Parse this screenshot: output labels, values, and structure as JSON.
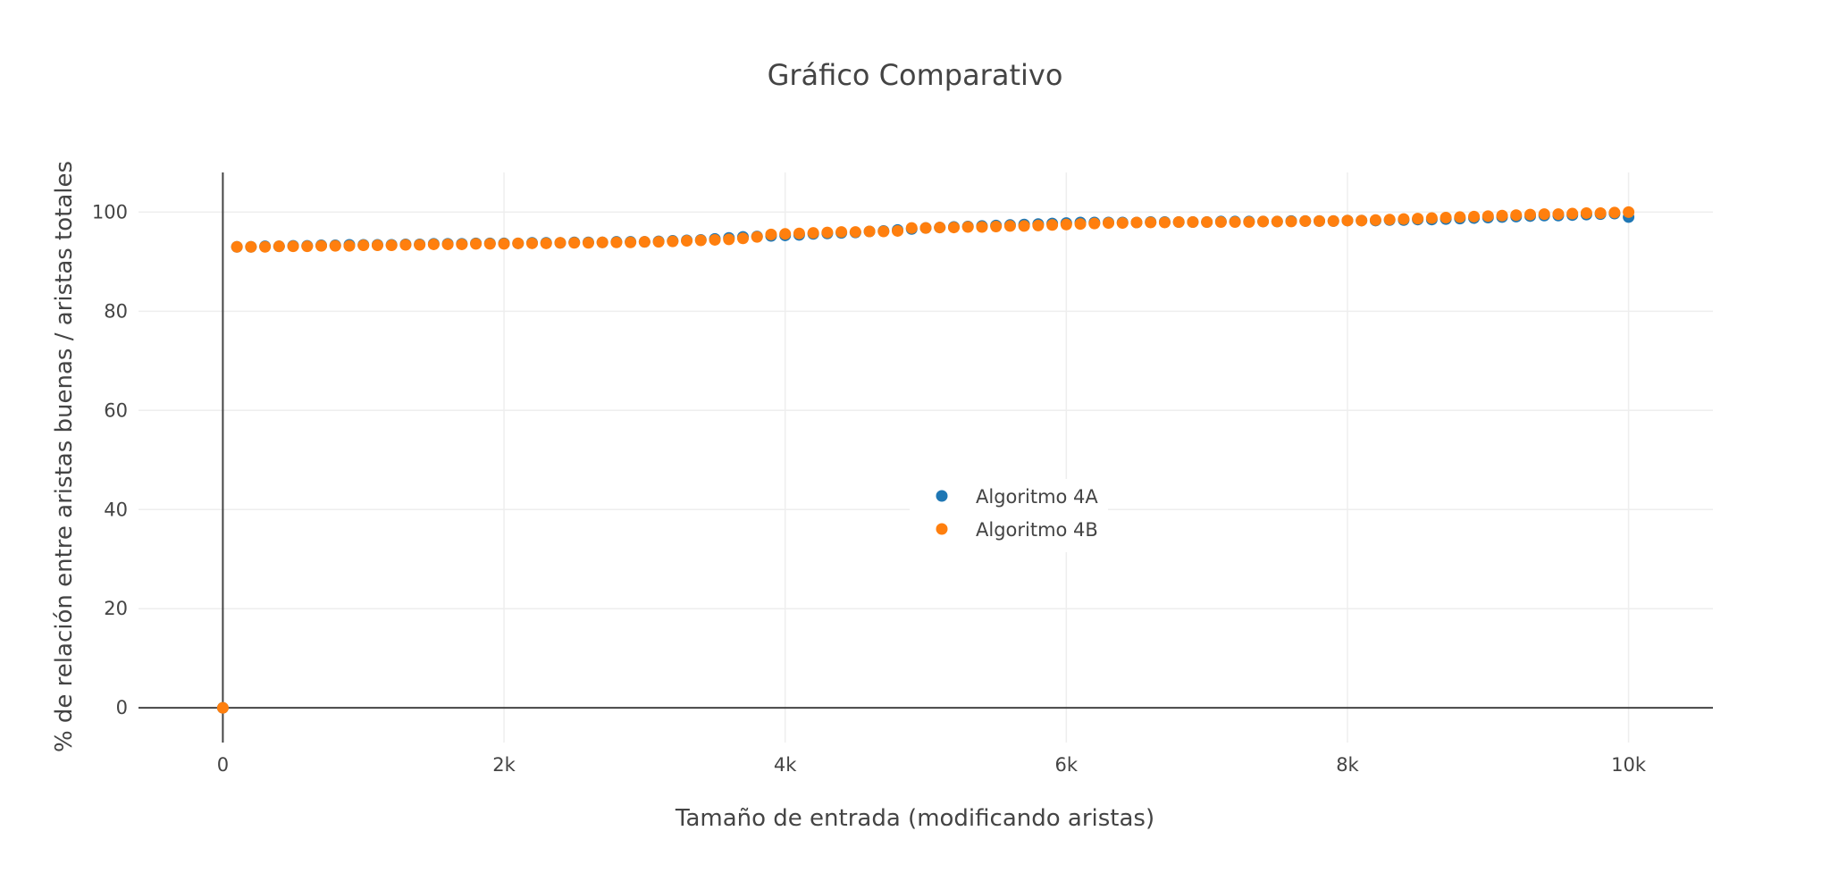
{
  "chart_data": {
    "type": "scatter",
    "title": "Gráfico Comparativo",
    "xlabel": "Tamaño de entrada (modificando aristas)",
    "ylabel": "% de relación entre aristas buenas / aristas totales",
    "xlim": [
      -600,
      10600
    ],
    "ylim": [
      -7,
      108
    ],
    "x_ticks": [
      {
        "value": 0,
        "label": "0"
      },
      {
        "value": 2000,
        "label": "2k"
      },
      {
        "value": 4000,
        "label": "4k"
      },
      {
        "value": 6000,
        "label": "6k"
      },
      {
        "value": 8000,
        "label": "8k"
      },
      {
        "value": 10000,
        "label": "10k"
      }
    ],
    "y_ticks": [
      {
        "value": 0,
        "label": "0"
      },
      {
        "value": 20,
        "label": "20"
      },
      {
        "value": 40,
        "label": "40"
      },
      {
        "value": 60,
        "label": "60"
      },
      {
        "value": 80,
        "label": "80"
      },
      {
        "value": 100,
        "label": "100"
      }
    ],
    "grid": true,
    "legend_position": "center",
    "series": [
      {
        "name": "Algoritmo 4A",
        "color": "#1f77b4",
        "x": [
          0,
          100,
          200,
          300,
          400,
          500,
          600,
          700,
          800,
          900,
          1000,
          1100,
          1200,
          1300,
          1400,
          1500,
          1600,
          1700,
          1800,
          1900,
          2000,
          2100,
          2200,
          2300,
          2400,
          2500,
          2600,
          2700,
          2800,
          2900,
          3000,
          3100,
          3200,
          3300,
          3400,
          3500,
          3600,
          3700,
          3800,
          3900,
          4000,
          4100,
          4200,
          4300,
          4400,
          4500,
          4600,
          4700,
          4800,
          4900,
          5000,
          5100,
          5200,
          5300,
          5400,
          5500,
          5600,
          5700,
          5800,
          5900,
          6000,
          6100,
          6200,
          6300,
          6400,
          6500,
          6600,
          6700,
          6800,
          6900,
          7000,
          7100,
          7200,
          7300,
          7400,
          7500,
          7600,
          7700,
          7800,
          7900,
          8000,
          8100,
          8200,
          8300,
          8400,
          8500,
          8600,
          8700,
          8800,
          8900,
          9000,
          9100,
          9200,
          9300,
          9400,
          9500,
          9600,
          9700,
          9800,
          9900,
          10000
        ],
        "y": [
          0,
          93.0,
          93.0,
          93.1,
          93.1,
          93.2,
          93.2,
          93.3,
          93.3,
          93.4,
          93.4,
          93.4,
          93.4,
          93.5,
          93.5,
          93.6,
          93.6,
          93.6,
          93.7,
          93.7,
          93.7,
          93.7,
          93.8,
          93.8,
          93.8,
          93.9,
          93.9,
          93.9,
          94.0,
          94.0,
          94.0,
          94.1,
          94.2,
          94.3,
          94.4,
          94.6,
          94.8,
          95.0,
          95.1,
          95.2,
          95.3,
          95.4,
          95.6,
          95.7,
          95.8,
          95.9,
          96.1,
          96.2,
          96.4,
          96.6,
          96.8,
          96.9,
          97.0,
          97.1,
          97.2,
          97.3,
          97.4,
          97.5,
          97.6,
          97.7,
          97.8,
          97.9,
          97.9,
          97.9,
          97.9,
          97.9,
          98.0,
          98.0,
          98.0,
          98.0,
          98.0,
          98.1,
          98.1,
          98.1,
          98.1,
          98.1,
          98.2,
          98.2,
          98.2,
          98.2,
          98.3,
          98.3,
          98.3,
          98.4,
          98.4,
          98.5,
          98.5,
          98.6,
          98.7,
          98.8,
          98.9,
          99.0,
          99.1,
          99.2,
          99.3,
          99.3,
          99.4,
          99.5,
          99.6,
          99.7,
          99.0
        ]
      },
      {
        "name": "Algoritmo 4B",
        "color": "#ff7f0e",
        "x": [
          0,
          100,
          200,
          300,
          400,
          500,
          600,
          700,
          800,
          900,
          1000,
          1100,
          1200,
          1300,
          1400,
          1500,
          1600,
          1700,
          1800,
          1900,
          2000,
          2100,
          2200,
          2300,
          2400,
          2500,
          2600,
          2700,
          2800,
          2900,
          3000,
          3100,
          3200,
          3300,
          3400,
          3500,
          3600,
          3700,
          3800,
          3900,
          4000,
          4100,
          4200,
          4300,
          4400,
          4500,
          4600,
          4700,
          4800,
          4900,
          5000,
          5100,
          5200,
          5300,
          5400,
          5500,
          5600,
          5700,
          5800,
          5900,
          6000,
          6100,
          6200,
          6300,
          6400,
          6500,
          6600,
          6700,
          6800,
          6900,
          7000,
          7100,
          7200,
          7300,
          7400,
          7500,
          7600,
          7700,
          7800,
          7900,
          8000,
          8100,
          8200,
          8300,
          8400,
          8500,
          8600,
          8700,
          8800,
          8900,
          9000,
          9100,
          9200,
          9300,
          9400,
          9500,
          9600,
          9700,
          9800,
          9900,
          10000
        ],
        "y": [
          0,
          93.0,
          93.0,
          93.0,
          93.1,
          93.1,
          93.1,
          93.2,
          93.2,
          93.2,
          93.3,
          93.3,
          93.3,
          93.4,
          93.4,
          93.5,
          93.5,
          93.5,
          93.6,
          93.6,
          93.6,
          93.7,
          93.7,
          93.7,
          93.8,
          93.8,
          93.8,
          93.9,
          93.9,
          93.9,
          94.0,
          94.0,
          94.1,
          94.2,
          94.3,
          94.4,
          94.5,
          94.7,
          95.0,
          95.5,
          95.6,
          95.7,
          95.8,
          95.9,
          96.0,
          96.0,
          96.1,
          96.1,
          96.2,
          96.8,
          96.8,
          96.9,
          96.9,
          97.0,
          97.0,
          97.1,
          97.2,
          97.2,
          97.3,
          97.4,
          97.5,
          97.6,
          97.7,
          97.8,
          97.8,
          97.9,
          97.9,
          97.9,
          98.0,
          98.0,
          98.0,
          98.0,
          98.0,
          98.0,
          98.1,
          98.1,
          98.1,
          98.2,
          98.2,
          98.2,
          98.3,
          98.3,
          98.4,
          98.5,
          98.6,
          98.7,
          98.8,
          98.9,
          99.0,
          99.1,
          99.2,
          99.3,
          99.4,
          99.5,
          99.6,
          99.6,
          99.7,
          99.8,
          99.8,
          99.9,
          100.0
        ]
      }
    ]
  }
}
